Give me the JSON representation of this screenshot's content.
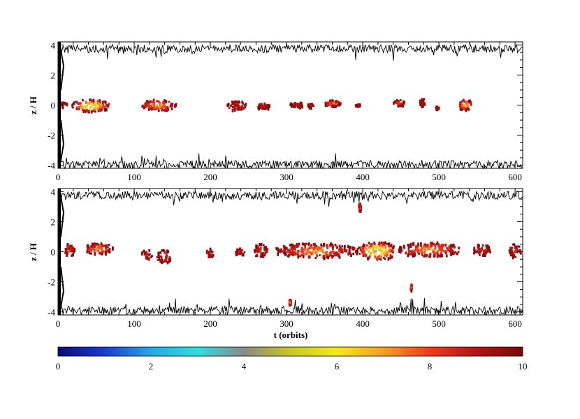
{
  "chart_data": [
    {
      "type": "heatmap",
      "panel": "top",
      "title": "",
      "xlabel": "",
      "ylabel": "z / H",
      "xlim": [
        0,
        610
      ],
      "ylim": [
        -4.2,
        4.2
      ],
      "xticks": [
        "0",
        "100",
        "200",
        "300",
        "400",
        "500",
        "600"
      ],
      "yticks": [
        "4",
        "2",
        "0",
        "-2",
        "-4"
      ],
      "grid": false,
      "upper_boundary_mean_z": 3.75,
      "lower_boundary_mean_z": -3.95,
      "blobs": [
        {
          "t0": 3,
          "t1": 12,
          "z0": -0.15,
          "z1": 0.15,
          "peak": 8.8
        },
        {
          "t0": 18,
          "t1": 68,
          "z0": -0.45,
          "z1": 0.35,
          "peak": 4.2
        },
        {
          "t0": 108,
          "t1": 155,
          "z0": -0.4,
          "z1": 0.35,
          "peak": 6.5
        },
        {
          "t0": 222,
          "t1": 248,
          "z0": -0.4,
          "z1": 0.25,
          "peak": 8.8
        },
        {
          "t0": 262,
          "t1": 278,
          "z0": -0.3,
          "z1": 0.1,
          "peak": 8.8
        },
        {
          "t0": 305,
          "t1": 322,
          "z0": -0.2,
          "z1": 0.2,
          "peak": 8.8
        },
        {
          "t0": 328,
          "t1": 336,
          "z0": -0.2,
          "z1": 0.1,
          "peak": 8.8
        },
        {
          "t0": 350,
          "t1": 372,
          "z0": -0.1,
          "z1": 0.3,
          "peak": 6.8
        },
        {
          "t0": 390,
          "t1": 397,
          "z0": -0.1,
          "z1": 0.05,
          "peak": 8.8
        },
        {
          "t0": 440,
          "t1": 455,
          "z0": -0.1,
          "z1": 0.35,
          "peak": 7.5
        },
        {
          "t0": 475,
          "t1": 482,
          "z0": -0.1,
          "z1": 0.4,
          "peak": 8.8
        },
        {
          "t0": 495,
          "t1": 500,
          "z0": -0.3,
          "z1": -0.1,
          "peak": 8.8
        },
        {
          "t0": 525,
          "t1": 545,
          "z0": -0.35,
          "z1": 0.35,
          "peak": 5.8
        }
      ]
    },
    {
      "type": "heatmap",
      "panel": "bottom",
      "title": "",
      "xlabel": "t (orbits)",
      "ylabel": "z / H",
      "xlim": [
        0,
        610
      ],
      "ylim": [
        -4.2,
        4.2
      ],
      "xticks": [
        "0",
        "100",
        "200",
        "300",
        "400",
        "500",
        "600"
      ],
      "yticks": [
        "4",
        "2",
        "0",
        "-2",
        "-4"
      ],
      "grid": false,
      "upper_boundary_mean_z": 3.75,
      "lower_boundary_mean_z": -3.9,
      "blobs": [
        {
          "t0": 8,
          "t1": 22,
          "z0": -0.3,
          "z1": 0.5,
          "peak": 8.0
        },
        {
          "t0": 35,
          "t1": 72,
          "z0": -0.2,
          "z1": 0.55,
          "peak": 6.8
        },
        {
          "t0": 110,
          "t1": 124,
          "z0": -0.5,
          "z1": 0.1,
          "peak": 8.8
        },
        {
          "t0": 130,
          "t1": 150,
          "z0": -0.8,
          "z1": 0.1,
          "peak": 8.8
        },
        {
          "t0": 195,
          "t1": 205,
          "z0": -0.5,
          "z1": 0.2,
          "peak": 8.8
        },
        {
          "t0": 230,
          "t1": 245,
          "z0": -0.3,
          "z1": 0.2,
          "peak": 8.8
        },
        {
          "t0": 255,
          "t1": 275,
          "z0": -0.4,
          "z1": 0.5,
          "peak": 8.5
        },
        {
          "t0": 285,
          "t1": 392,
          "z0": -0.45,
          "z1": 0.55,
          "peak": 6.8
        },
        {
          "t0": 392,
          "t1": 445,
          "z0": -0.55,
          "z1": 0.65,
          "peak": 4.0
        },
        {
          "t0": 445,
          "t1": 530,
          "z0": -0.35,
          "z1": 0.6,
          "peak": 6.8
        },
        {
          "t0": 545,
          "t1": 568,
          "z0": -0.3,
          "z1": 0.5,
          "peak": 8.5
        },
        {
          "t0": 592,
          "t1": 608,
          "z0": -0.4,
          "z1": 0.5,
          "peak": 8.5
        },
        {
          "t0": 395,
          "t1": 398,
          "z0": 2.6,
          "z1": 3.2,
          "peak": 6.5
        },
        {
          "t0": 303,
          "t1": 306,
          "z0": -3.6,
          "z1": -3.2,
          "peak": 6.5
        },
        {
          "t0": 463,
          "t1": 465,
          "z0": -2.6,
          "z1": -2.2,
          "peak": 7.5
        }
      ]
    }
  ],
  "colorbar": {
    "min": 0,
    "max": 10,
    "ticks": [
      "0",
      "2",
      "4",
      "6",
      "8",
      "10"
    ],
    "colors": [
      "#0a0a78",
      "#1a3ccf",
      "#24a8e6",
      "#2ce0e0",
      "#8a8a8a",
      "#c8c820",
      "#f5e81e",
      "#f5a020",
      "#f03a1e",
      "#b41414",
      "#780a0a"
    ]
  }
}
